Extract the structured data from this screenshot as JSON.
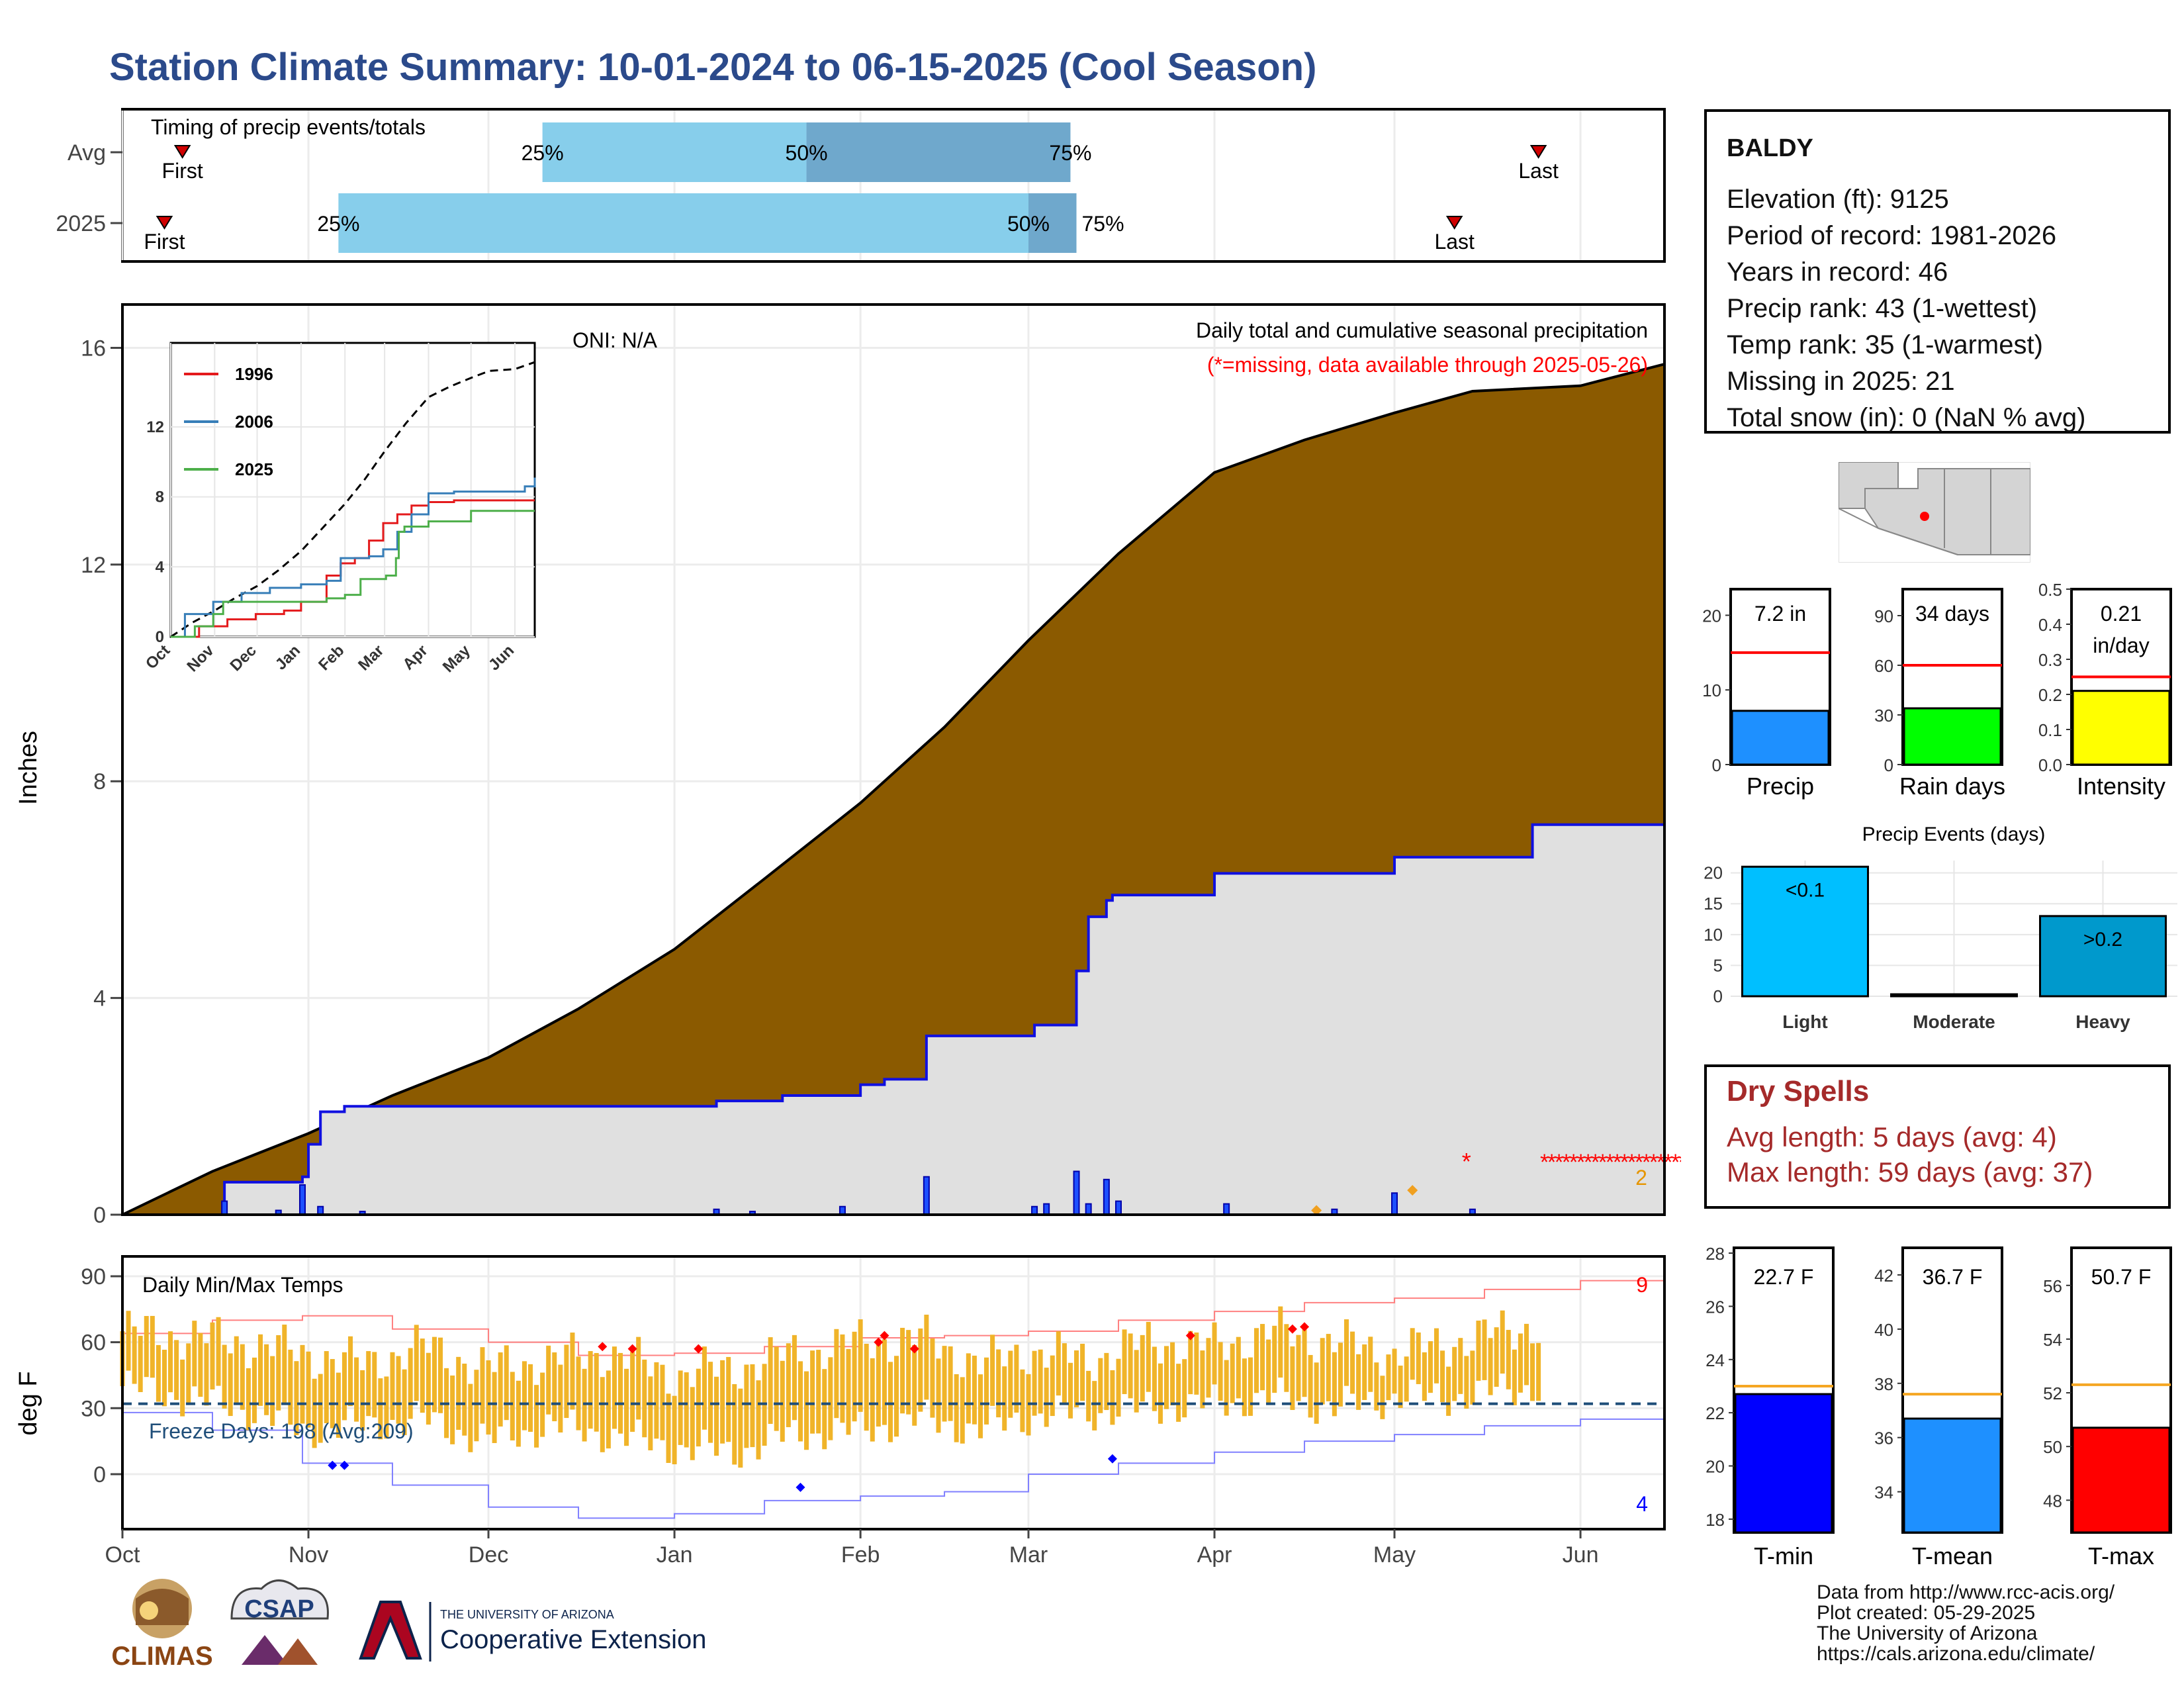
{
  "title": "Station Climate Summary: 10-01-2024 to 06-15-2025 (Cool Season)",
  "colors": {
    "title": "#2b4a8b",
    "cumulative_fill": "#8b5a00",
    "current_line": "#1010e0",
    "bar_light": "#87ceeb",
    "bar_dark": "#6fa8cc",
    "temp_bar": "#f0b429",
    "dry": "#a52a2a",
    "missing": "#ff0000"
  },
  "station": {
    "name": "BALDY",
    "lines": [
      "Elevation (ft): 9125",
      "Period of record: 1981-2026",
      "Years in record: 46",
      "Precip rank: 43 (1-wettest)",
      "Temp rank: 35 (1-warmest)",
      "Missing in 2025: 21",
      "Total snow (in): 0 (NaN % avg)"
    ]
  },
  "timing_panel": {
    "title": "Timing of precip events/totals",
    "rows": [
      "Avg",
      "2025"
    ],
    "avg": {
      "first": "First",
      "last": "Last",
      "p25": "25%",
      "p50": "50%",
      "p75": "75%",
      "first_day": 10,
      "p25_day": 70,
      "p50_day": 114,
      "p75_day": 158,
      "last_day": 236
    },
    "current": {
      "first": "First",
      "last": "Last",
      "p25": "25%",
      "p50": "50%",
      "p75": "75%",
      "first_day": 7,
      "p25_day": 36,
      "p50_day": 151,
      "p75_day": 159,
      "last_day": 222
    }
  },
  "months": [
    "Oct",
    "Nov",
    "Dec",
    "Jan",
    "Feb",
    "Mar",
    "Apr",
    "May",
    "Jun"
  ],
  "month_days": [
    0,
    31,
    61,
    92,
    123,
    151,
    182,
    212,
    243
  ],
  "precip_panel": {
    "ylabel": "Inches",
    "yticks": [
      0,
      4,
      8,
      12,
      16
    ],
    "oni": "ONI: N/A",
    "note1": "Daily total and cumulative seasonal precipitation",
    "note2": "(*=missing, data available through 2025-05-26)",
    "missing_count": "2"
  },
  "inset": {
    "legend": [
      "1996",
      "2006",
      "2025"
    ],
    "legend_colors": [
      "#e41a1c",
      "#377eb8",
      "#4daf4a"
    ],
    "yticks": [
      "0",
      "4",
      "8",
      "12"
    ],
    "xticks": [
      "Oct",
      "Nov",
      "Dec",
      "Jan",
      "Feb",
      "Mar",
      "Apr",
      "May",
      "Jun"
    ]
  },
  "temp_panel": {
    "ylabel": "deg F",
    "title": "Daily Min/Max Temps",
    "yticks": [
      0,
      30,
      60,
      90
    ],
    "freeze": "Freeze Days: 198 (Avg:209)",
    "record_high_count": "9",
    "record_low_count": "4"
  },
  "side_bars": {
    "precip": {
      "label": "Precip",
      "value_text": "7.2 in",
      "value": 7.2,
      "avg": 15,
      "yticks": [
        "0",
        "10",
        "20"
      ],
      "ymax": 23.5,
      "color": "#1e90ff"
    },
    "rain_days": {
      "label": "Rain days",
      "value_text": "34 days",
      "value": 34,
      "avg": 60,
      "yticks": [
        "0",
        "30",
        "60",
        "90"
      ],
      "ymax": 106,
      "color": "#00ff00"
    },
    "intensity": {
      "label": "Intensity",
      "value_text1": "0.21",
      "value_text2": "in/day",
      "value": 0.21,
      "avg": 0.25,
      "yticks": [
        "0.0",
        "0.1",
        "0.2",
        "0.3",
        "0.4",
        "0.5"
      ],
      "ymax": 0.5,
      "color": "#ffff00"
    }
  },
  "events": {
    "title": "Precip Events (days)",
    "categories": [
      "Light",
      "Moderate",
      "Heavy"
    ],
    "values": [
      21,
      0,
      13
    ],
    "labels": [
      "<0.1",
      "",
      ">0.2"
    ],
    "colors": [
      "#00bfff",
      "#1e90ff",
      "#0099cc"
    ],
    "yticks": [
      "0",
      "5",
      "10",
      "15",
      "20"
    ]
  },
  "dry_spells": {
    "title": "Dry Spells",
    "line1": "Avg length: 5 days (avg: 4)",
    "line2": "Max length: 59 days (avg: 37)"
  },
  "temp_bars": {
    "tmin": {
      "label": "T-min",
      "value_text": "22.7 F",
      "value": 22.7,
      "avg": 23.0,
      "ymin": 17.5,
      "ymax": 28.2,
      "yticks": [
        "18",
        "20",
        "22",
        "24",
        "26",
        "28"
      ],
      "color": "#0000ff"
    },
    "tmean": {
      "label": "T-mean",
      "value_text": "36.7 F",
      "value": 36.7,
      "avg": 37.6,
      "ymin": 32.5,
      "ymax": 43.0,
      "yticks": [
        "34",
        "36",
        "38",
        "40",
        "42"
      ],
      "color": "#1e90ff"
    },
    "tmax": {
      "label": "T-max",
      "value_text": "50.7 F",
      "value": 50.7,
      "avg": 52.3,
      "ymin": 46.8,
      "ymax": 57.4,
      "yticks": [
        "48",
        "50",
        "52",
        "54",
        "56"
      ],
      "color": "#ff0000"
    }
  },
  "source": [
    "Data from http://www.rcc-acis.org/",
    "Plot created: 05-29-2025",
    "The University of Arizona",
    "https://cals.arizona.edu/climate/"
  ],
  "logos": {
    "climas": "CLIMAS",
    "csap": "CSAP",
    "ua_small": "THE UNIVERSITY OF ARIZONA",
    "ua_big": "Cooperative Extension"
  },
  "chart_data": [
    {
      "type": "area",
      "title": "Daily total and cumulative seasonal precipitation",
      "ylabel": "Inches",
      "ylim": [
        0,
        16.8
      ],
      "x_unit": "day of season (0 = Oct 1)",
      "average_cumulative": {
        "x": [
          0,
          15,
          31,
          45,
          61,
          76,
          92,
          107,
          123,
          137,
          151,
          166,
          182,
          197,
          212,
          225,
          243,
          257
        ],
        "y": [
          0,
          0.8,
          1.5,
          2.2,
          2.9,
          3.8,
          4.9,
          6.2,
          7.6,
          9.0,
          10.6,
          12.2,
          13.7,
          14.3,
          14.8,
          15.2,
          15.3,
          15.7
        ]
      },
      "current_cumulative": {
        "x": [
          0,
          15,
          17,
          26,
          30,
          31,
          33,
          37,
          61,
          92,
          99,
          110,
          123,
          127,
          134,
          152,
          159,
          161,
          164,
          165,
          172,
          182,
          212,
          235,
          257
        ],
        "y": [
          0,
          0,
          0.6,
          0.6,
          0.7,
          1.3,
          1.9,
          2.0,
          2.0,
          2.0,
          2.1,
          2.2,
          2.4,
          2.5,
          3.3,
          3.5,
          4.5,
          5.5,
          5.8,
          5.9,
          5.9,
          6.3,
          6.6,
          7.2,
          7.2
        ]
      },
      "daily_precip": {
        "x": [
          17,
          26,
          30,
          33,
          40,
          99,
          105,
          120,
          134,
          152,
          154,
          159,
          161,
          164,
          166,
          184,
          202,
          212,
          225
        ],
        "y": [
          0.25,
          0.08,
          0.55,
          0.15,
          0.06,
          0.1,
          0.06,
          0.15,
          0.7,
          0.15,
          0.2,
          0.8,
          0.2,
          0.65,
          0.25,
          0.2,
          0.1,
          0.4,
          0.1
        ]
      }
    },
    {
      "type": "line",
      "title": "Daily Min/Max Temps",
      "ylabel": "deg F",
      "ylim": [
        -25,
        93
      ],
      "freeze_line": 32,
      "record_high": {
        "x": [
          0,
          15,
          30,
          45,
          61,
          76,
          92,
          107,
          123,
          137,
          151,
          166,
          182,
          197,
          212,
          227,
          243,
          257
        ],
        "y": [
          64,
          70,
          72,
          66,
          60,
          54,
          55,
          58,
          62,
          63,
          65,
          70,
          74,
          78,
          80,
          84,
          88,
          90
        ]
      },
      "record_low": {
        "x": [
          0,
          15,
          30,
          45,
          61,
          76,
          92,
          107,
          123,
          137,
          151,
          166,
          182,
          197,
          212,
          227,
          243,
          257
        ],
        "y": [
          28,
          20,
          5,
          -5,
          -15,
          -20,
          -18,
          -12,
          -10,
          -8,
          0,
          5,
          10,
          15,
          18,
          22,
          25,
          28
        ]
      },
      "daily_max_band": {
        "x": [
          0,
          10,
          20,
          30,
          40,
          50,
          61,
          71,
          81,
          92,
          102,
          112,
          123,
          133,
          143,
          151,
          161,
          171,
          182,
          192,
          202,
          212,
          222,
          236
        ],
        "y": [
          65,
          63,
          60,
          55,
          50,
          58,
          48,
          52,
          55,
          45,
          48,
          55,
          60,
          62,
          50,
          56,
          52,
          60,
          58,
          65,
          60,
          55,
          60,
          68
        ]
      },
      "daily_min_band": {
        "x": [
          0,
          10,
          20,
          30,
          40,
          50,
          61,
          71,
          81,
          92,
          102,
          112,
          123,
          133,
          143,
          151,
          161,
          171,
          182,
          192,
          202,
          212,
          222,
          236
        ],
        "y": [
          40,
          35,
          30,
          20,
          22,
          25,
          15,
          22,
          18,
          12,
          10,
          18,
          20,
          25,
          20,
          26,
          28,
          30,
          32,
          35,
          30,
          35,
          35,
          40
        ]
      }
    }
  ]
}
